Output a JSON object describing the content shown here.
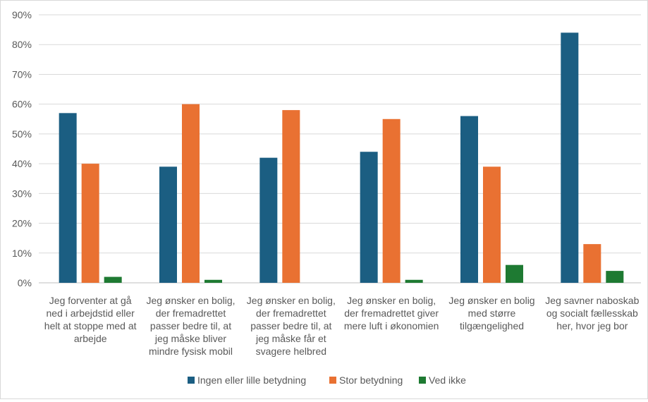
{
  "chart_data": {
    "type": "bar",
    "title": "",
    "xlabel": "",
    "ylabel": "",
    "ylim": [
      0,
      90
    ],
    "yticks": [
      0,
      10,
      20,
      30,
      40,
      50,
      60,
      70,
      80,
      90
    ],
    "ytick_suffix": "%",
    "grid": true,
    "legend_position": "bottom",
    "categories": [
      [
        "Jeg forventer at gå",
        "ned i arbejdstid eller",
        "helt at stoppe med at",
        "arbejde"
      ],
      [
        "Jeg ønsker en bolig,",
        "der fremadrettet",
        "passer bedre til, at",
        "jeg måske bliver",
        "mindre fysisk mobil"
      ],
      [
        "Jeg ønsker en bolig,",
        "der fremadrettet",
        "passer bedre til, at",
        "jeg måske får et",
        "svagere helbred"
      ],
      [
        "Jeg ønsker en bolig,",
        "der fremadrettet giver",
        "mere luft i økonomien"
      ],
      [
        "Jeg ønsker en bolig",
        "med større",
        "tilgængelighed"
      ],
      [
        "Jeg savner naboskab",
        "og socialt fællesskab",
        "her, hvor jeg bor"
      ]
    ],
    "series": [
      {
        "name": "Ingen eller lille betydning",
        "color": "#1b5e82",
        "values": [
          57,
          39,
          42,
          44,
          56,
          84
        ]
      },
      {
        "name": "Stor betydning",
        "color": "#e97132",
        "values": [
          40,
          60,
          58,
          55,
          39,
          13
        ]
      },
      {
        "name": "Ved ikke",
        "color": "#1e7a32",
        "values": [
          2,
          1,
          0,
          1,
          6,
          4
        ]
      }
    ]
  }
}
